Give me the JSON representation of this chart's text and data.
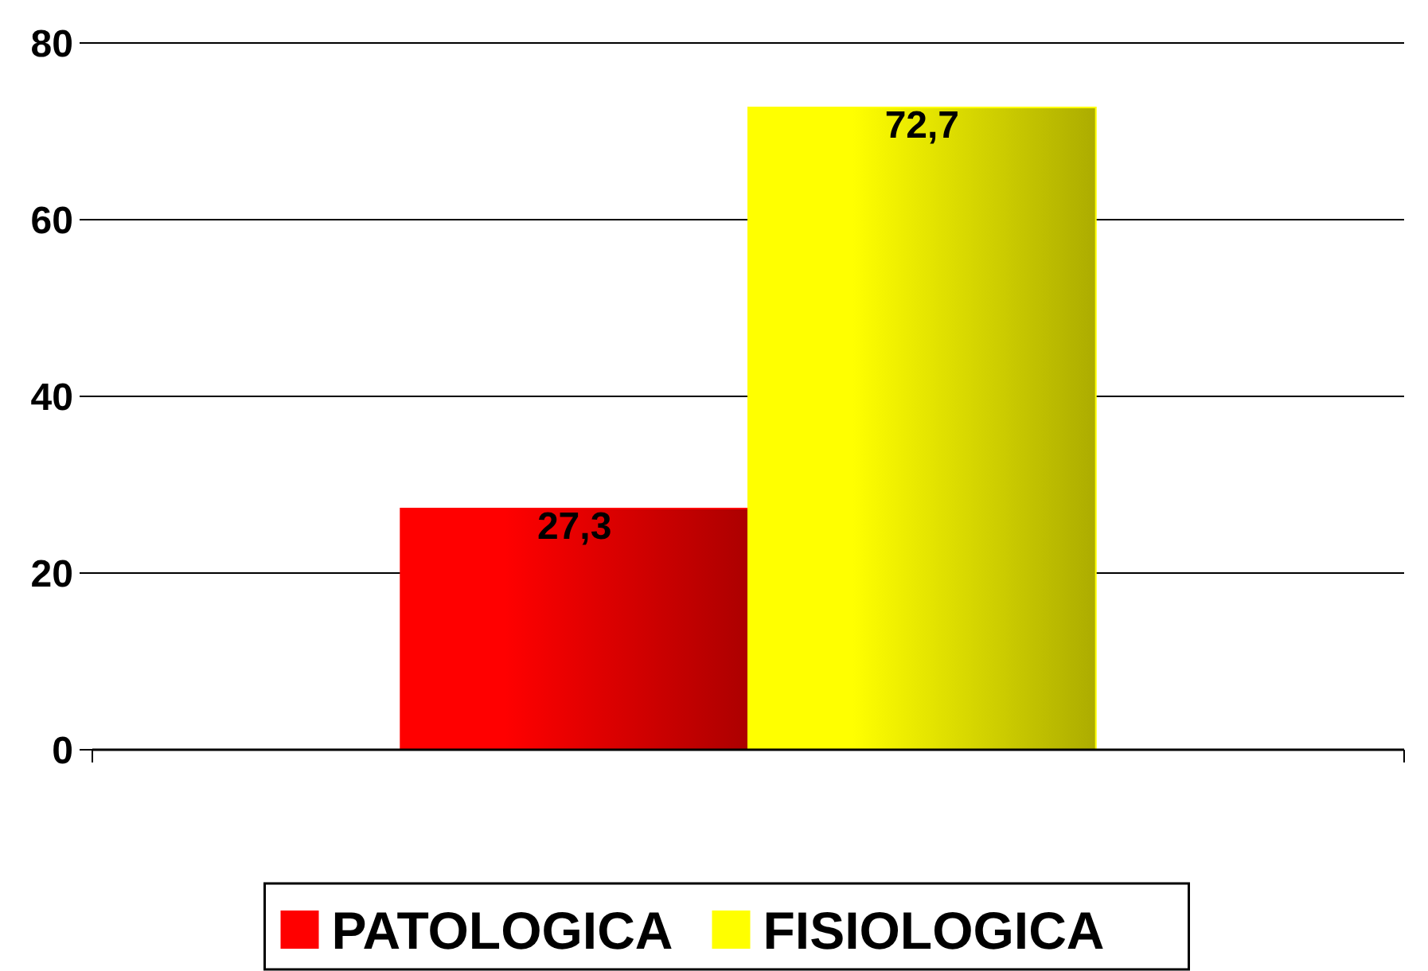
{
  "chart_data": {
    "type": "bar",
    "categories": [
      null
    ],
    "series": [
      {
        "name": "PATOLOGICA",
        "color": "#ff0000",
        "values": [
          27.3
        ],
        "value_labels": [
          "27,3"
        ]
      },
      {
        "name": "FISIOLOGICA",
        "color": "#ffff00",
        "values": [
          72.7
        ],
        "value_labels": [
          "72,7"
        ]
      }
    ],
    "ylim": [
      0,
      80
    ],
    "yticks": [
      0,
      20,
      40,
      60,
      80
    ],
    "grid": "y",
    "legend": "bottom"
  }
}
